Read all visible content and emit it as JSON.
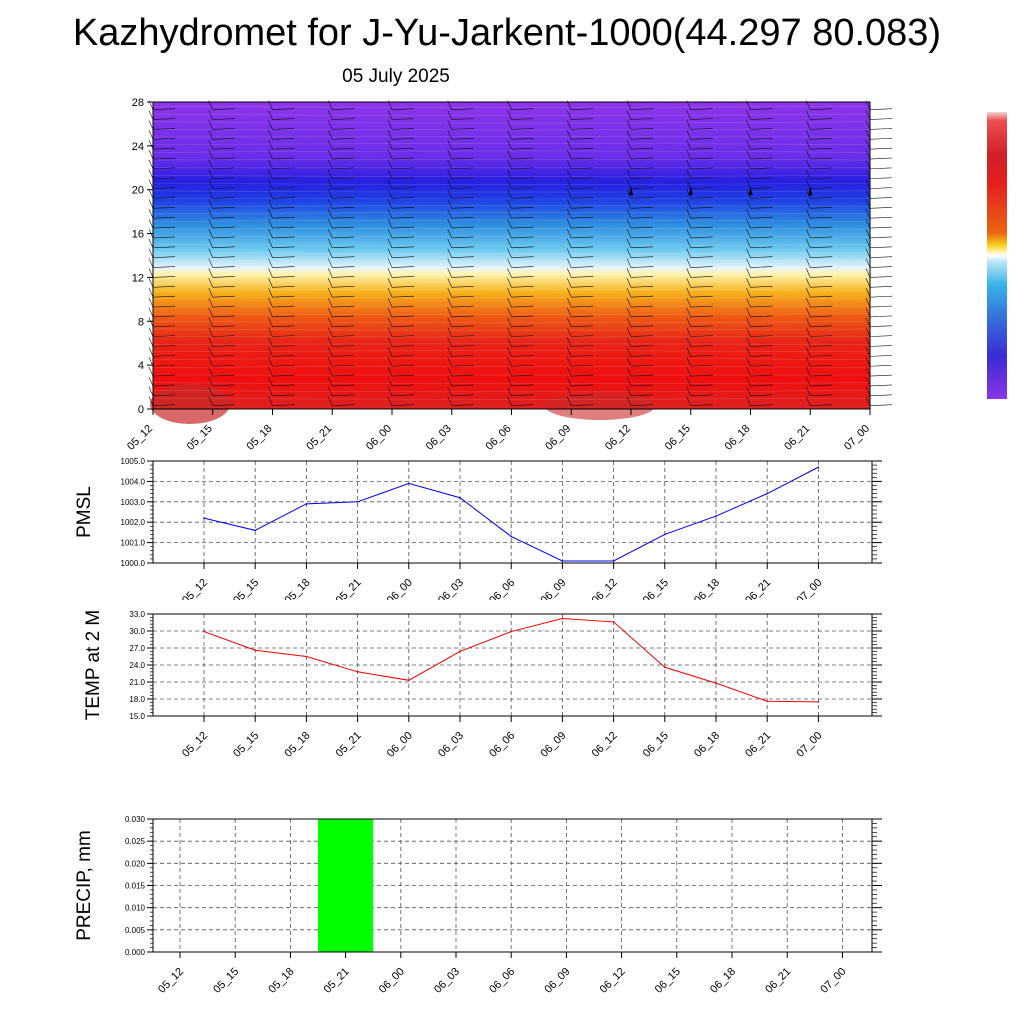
{
  "header": {
    "title": "Kazhydromet for J-Yu-Jarkent-1000(44.297 80.083)",
    "date": "05 July 2025"
  },
  "colors": {
    "pmsl_line": "#0000ee",
    "temp_line": "#ee0000",
    "precip_bar": "#00ff00",
    "grid": "#555555"
  },
  "chart_data": [
    {
      "type": "heatmap",
      "name": "cross-section",
      "x": [
        "05_12",
        "05_15",
        "05_18",
        "05_21",
        "06_00",
        "06_03",
        "06_06",
        "06_09",
        "06_12",
        "06_15",
        "06_18",
        "06_21",
        "07_00"
      ],
      "yticks": [
        0,
        4,
        8,
        12,
        16,
        20,
        24,
        28
      ],
      "ylim": [
        0,
        28
      ],
      "colorbar": "vertical, right",
      "wind_barbs": true
    },
    {
      "type": "line",
      "name": "pmsl",
      "ylabel": "PMSL",
      "categories": [
        "05_12",
        "05_15",
        "05_18",
        "05_21",
        "06_00",
        "06_03",
        "06_06",
        "06_09",
        "06_12",
        "06_15",
        "06_18",
        "06_21",
        "07_00"
      ],
      "values": [
        1002.2,
        1001.6,
        1002.9,
        1003.0,
        1003.9,
        1003.2,
        1001.3,
        1000.1,
        1000.1,
        1001.4,
        1002.3,
        1003.4,
        1004.7
      ],
      "yticks": [
        "1000.0",
        "1001.0",
        "1002.0",
        "1003.0",
        "1004.0",
        "1005.0"
      ],
      "ylim": [
        1000,
        1005
      ],
      "grid": true
    },
    {
      "type": "line",
      "name": "temp",
      "ylabel": "TEMP at 2 M",
      "categories": [
        "05_12",
        "05_15",
        "05_18",
        "05_21",
        "06_00",
        "06_03",
        "06_06",
        "06_09",
        "06_12",
        "06_15",
        "06_18",
        "06_21",
        "07_00"
      ],
      "values": [
        29.9,
        26.6,
        25.5,
        22.8,
        21.3,
        26.4,
        29.9,
        32.2,
        31.6,
        23.6,
        20.8,
        17.6,
        17.5
      ],
      "yticks": [
        "15.0",
        "18.0",
        "21.0",
        "24.0",
        "27.0",
        "30.0",
        "33.0"
      ],
      "ylim": [
        15,
        33
      ],
      "grid": true
    },
    {
      "type": "bar",
      "name": "precip",
      "ylabel": "PRECIP, mm",
      "categories": [
        "05_12",
        "05_15",
        "05_18",
        "05_21",
        "06_00",
        "06_03",
        "06_06",
        "06_09",
        "06_12",
        "06_15",
        "06_18",
        "06_21",
        "07_00"
      ],
      "values": [
        0,
        0,
        0,
        0.03,
        0,
        0,
        0,
        0,
        0,
        0,
        0,
        0,
        0
      ],
      "yticks": [
        "0.000",
        "0.005",
        "0.010",
        "0.015",
        "0.020",
        "0.025",
        "0.030"
      ],
      "ylim": [
        0,
        0.03
      ],
      "grid": true
    }
  ]
}
